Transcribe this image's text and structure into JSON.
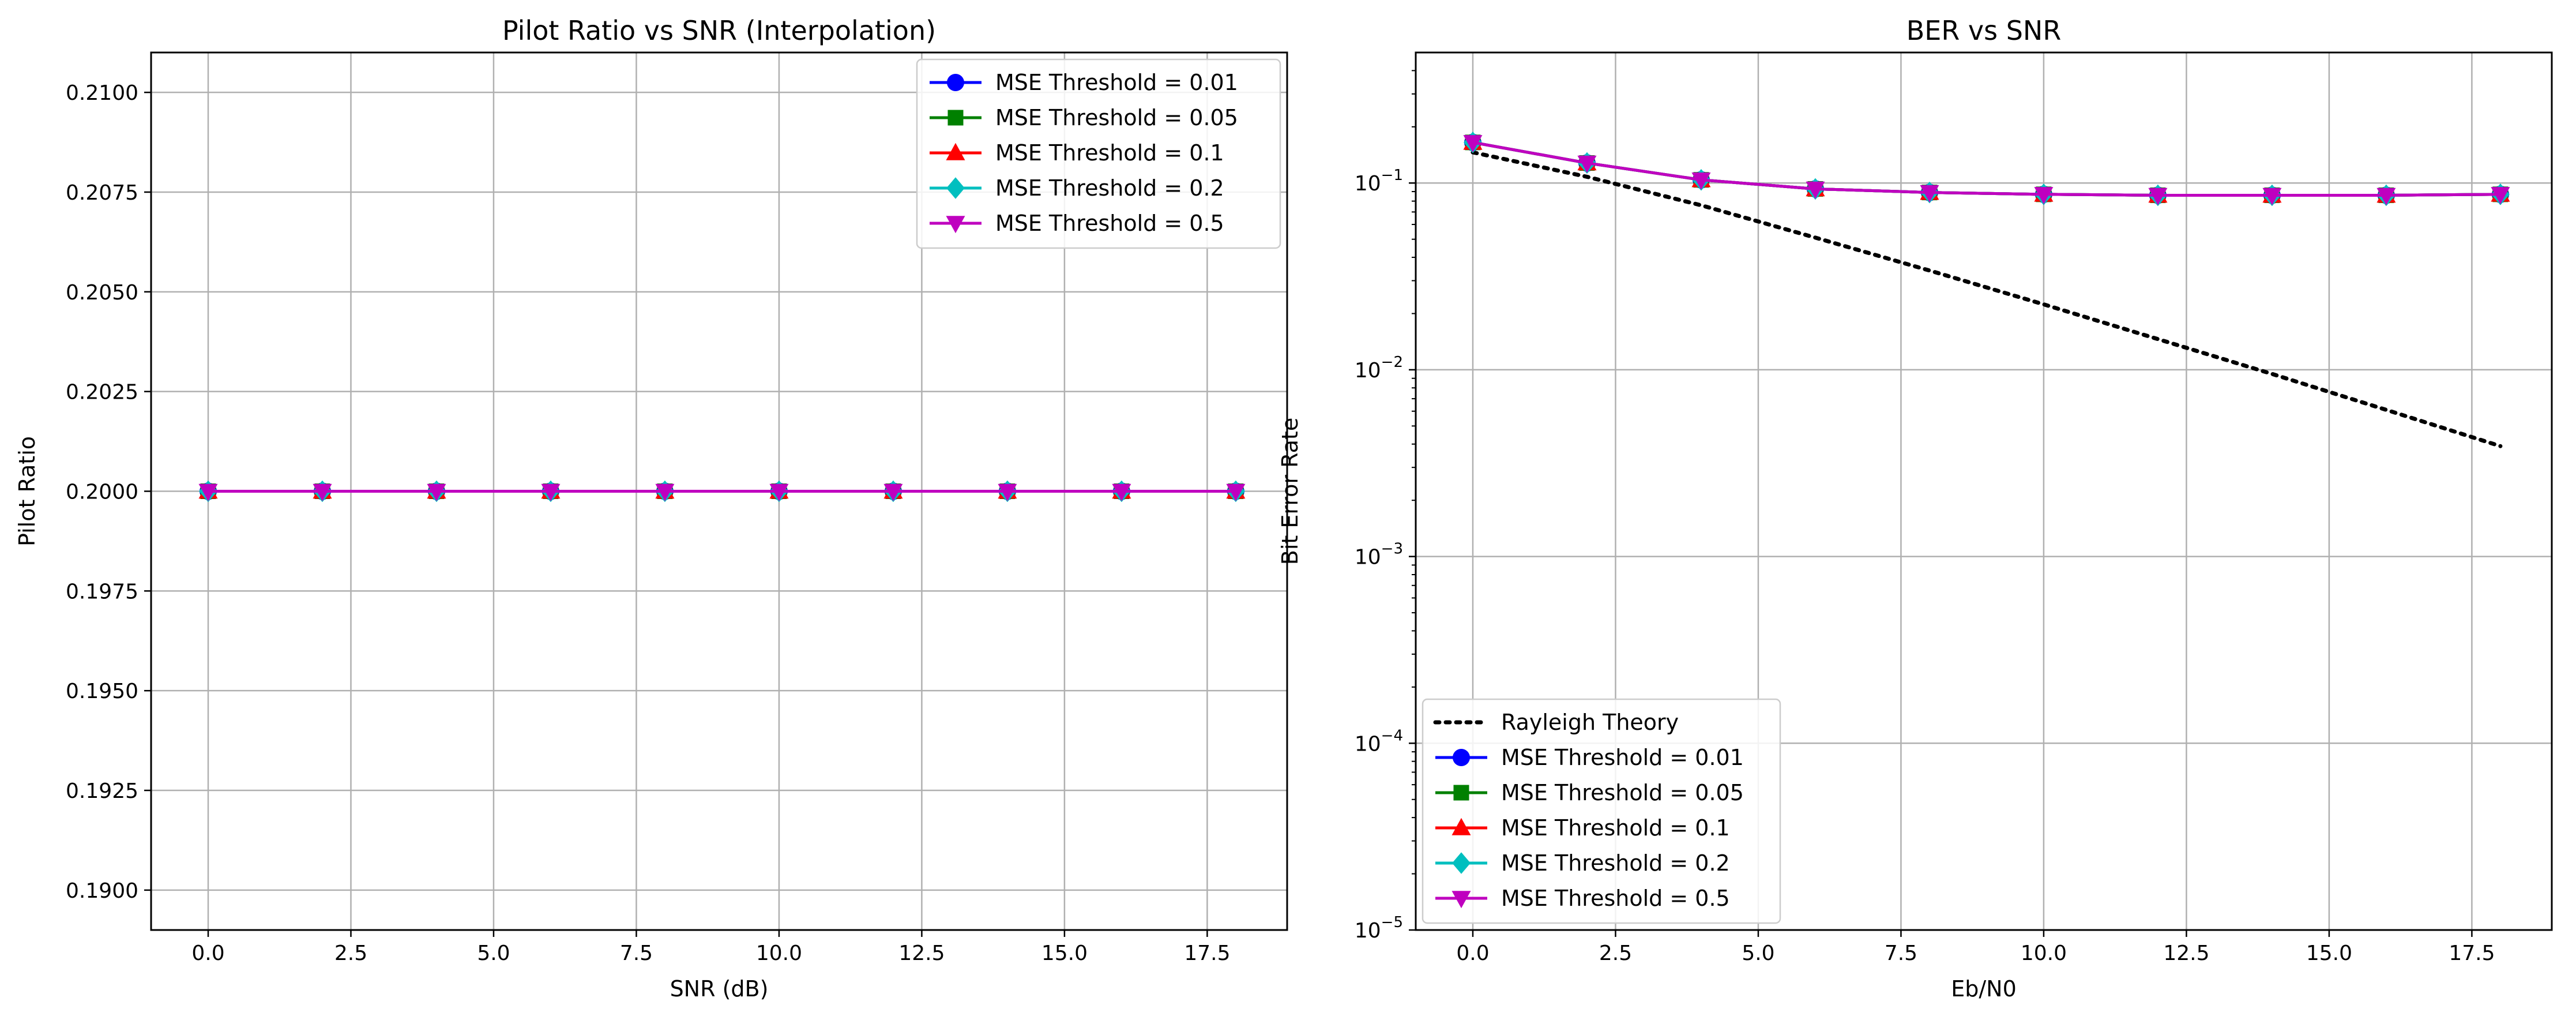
{
  "chart_data": [
    {
      "type": "line",
      "title": "Pilot Ratio vs SNR (Interpolation)",
      "xlabel": "SNR (dB)",
      "ylabel": "Pilot Ratio",
      "xlim": [
        -1,
        18.9
      ],
      "ylim": [
        0.189,
        0.211
      ],
      "xticks": [
        0.0,
        2.5,
        5.0,
        7.5,
        10.0,
        12.5,
        15.0,
        17.5
      ],
      "xtick_labels": [
        "0.0",
        "2.5",
        "5.0",
        "7.5",
        "10.0",
        "12.5",
        "15.0",
        "17.5"
      ],
      "yticks": [
        0.19,
        0.1925,
        0.195,
        0.1975,
        0.2,
        0.2025,
        0.205,
        0.2075,
        0.21
      ],
      "ytick_labels": [
        "0.1900",
        "0.1925",
        "0.1950",
        "0.1975",
        "0.2000",
        "0.2025",
        "0.2050",
        "0.2075",
        "0.2100"
      ],
      "grid": true,
      "legend_position": "upper right",
      "x": [
        0,
        2,
        4,
        6,
        8,
        10,
        12,
        14,
        16,
        18
      ],
      "series": [
        {
          "name": "MSE Threshold = 0.01",
          "color": "#0000ff",
          "marker": "circle",
          "values": [
            0.2,
            0.2,
            0.2,
            0.2,
            0.2,
            0.2,
            0.2,
            0.2,
            0.2,
            0.2
          ]
        },
        {
          "name": "MSE Threshold = 0.05",
          "color": "#008000",
          "marker": "square",
          "values": [
            0.2,
            0.2,
            0.2,
            0.2,
            0.2,
            0.2,
            0.2,
            0.2,
            0.2,
            0.2
          ]
        },
        {
          "name": "MSE Threshold = 0.1",
          "color": "#ff0000",
          "marker": "triangle-up",
          "values": [
            0.2,
            0.2,
            0.2,
            0.2,
            0.2,
            0.2,
            0.2,
            0.2,
            0.2,
            0.2
          ]
        },
        {
          "name": "MSE Threshold = 0.2",
          "color": "#00bfbf",
          "marker": "diamond",
          "values": [
            0.2,
            0.2,
            0.2,
            0.2,
            0.2,
            0.2,
            0.2,
            0.2,
            0.2,
            0.2
          ]
        },
        {
          "name": "MSE Threshold = 0.5",
          "color": "#bf00bf",
          "marker": "triangle-down",
          "values": [
            0.2,
            0.2,
            0.2,
            0.2,
            0.2,
            0.2,
            0.2,
            0.2,
            0.2,
            0.2
          ]
        }
      ]
    },
    {
      "type": "line",
      "title": "BER vs SNR",
      "xlabel": "Eb/N0",
      "ylabel": "Bit Error Rate",
      "xscale": "linear",
      "yscale": "log",
      "xlim": [
        -1,
        18.9
      ],
      "ylim": [
        1e-05,
        0.5
      ],
      "xticks": [
        0.0,
        2.5,
        5.0,
        7.5,
        10.0,
        12.5,
        15.0,
        17.5
      ],
      "xtick_labels": [
        "0.0",
        "2.5",
        "5.0",
        "7.5",
        "10.0",
        "12.5",
        "15.0",
        "17.5"
      ],
      "yticks": [
        1e-05,
        0.0001,
        0.001,
        0.01,
        0.1
      ],
      "ytick_labels": [
        {
          "base": "10",
          "exp": "−5"
        },
        {
          "base": "10",
          "exp": "−4"
        },
        {
          "base": "10",
          "exp": "−3"
        },
        {
          "base": "10",
          "exp": "−2"
        },
        {
          "base": "10",
          "exp": "−1"
        }
      ],
      "grid": true,
      "legend_position": "lower left",
      "x": [
        0,
        2,
        4,
        6,
        8,
        10,
        12,
        14,
        16,
        18
      ],
      "theory": {
        "name": "Rayleigh Theory",
        "color": "#000000",
        "style": "dotted",
        "values": [
          0.146,
          0.108,
          0.076,
          0.051,
          0.034,
          0.0224,
          0.0146,
          0.0095,
          0.0061,
          0.0039
        ]
      },
      "series": [
        {
          "name": "MSE Threshold = 0.01",
          "color": "#0000ff",
          "marker": "circle",
          "values": [
            0.165,
            0.128,
            0.104,
            0.093,
            0.089,
            0.087,
            0.086,
            0.086,
            0.086,
            0.087
          ]
        },
        {
          "name": "MSE Threshold = 0.05",
          "color": "#008000",
          "marker": "square",
          "values": [
            0.165,
            0.128,
            0.104,
            0.093,
            0.089,
            0.087,
            0.086,
            0.086,
            0.086,
            0.087
          ]
        },
        {
          "name": "MSE Threshold = 0.1",
          "color": "#ff0000",
          "marker": "triangle-up",
          "values": [
            0.165,
            0.128,
            0.104,
            0.093,
            0.089,
            0.087,
            0.086,
            0.086,
            0.086,
            0.087
          ]
        },
        {
          "name": "MSE Threshold = 0.2",
          "color": "#00bfbf",
          "marker": "diamond",
          "values": [
            0.165,
            0.128,
            0.104,
            0.093,
            0.089,
            0.087,
            0.086,
            0.086,
            0.086,
            0.087
          ]
        },
        {
          "name": "MSE Threshold = 0.5",
          "color": "#bf00bf",
          "marker": "triangle-down",
          "values": [
            0.165,
            0.128,
            0.104,
            0.093,
            0.089,
            0.087,
            0.086,
            0.086,
            0.086,
            0.087
          ]
        }
      ]
    }
  ]
}
